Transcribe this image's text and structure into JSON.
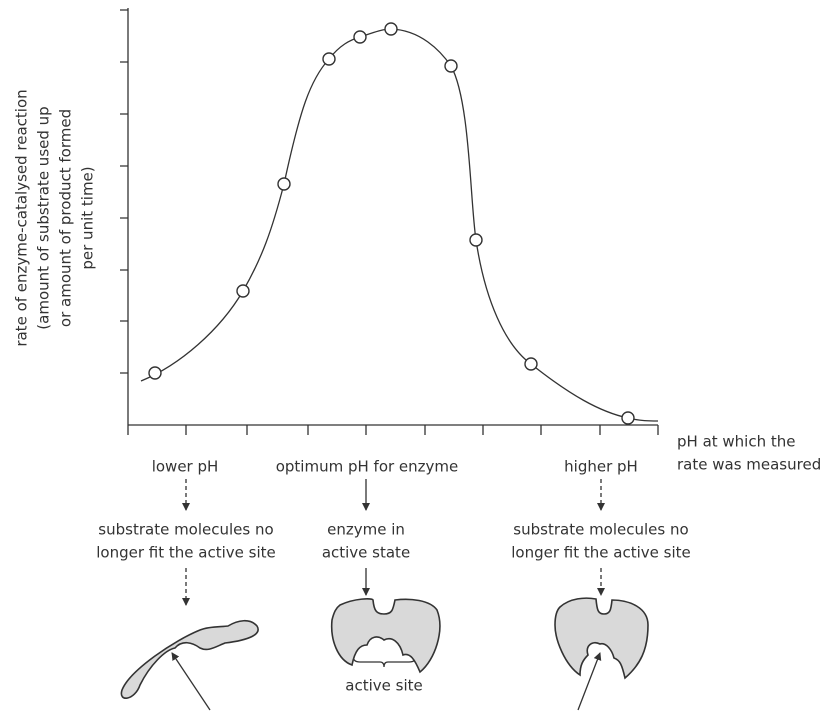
{
  "axes": {
    "y_label": [
      "rate of enzyme-catalysed reaction",
      "(amount of substrate used up",
      "or amount of product formed",
      "per unit time)"
    ],
    "x_label": [
      "pH at which the",
      "rate was measured"
    ]
  },
  "columns": [
    {
      "condition": "lower pH",
      "effect": [
        "substrate molecules no",
        "longer fit the active site"
      ]
    },
    {
      "condition": "optimum pH for enzyme",
      "effect": [
        "enzyme in",
        "active state"
      ]
    },
    {
      "condition": "higher pH",
      "effect": [
        "substrate molecules no",
        "longer fit the active site"
      ]
    }
  ],
  "annotation": "active site"
}
